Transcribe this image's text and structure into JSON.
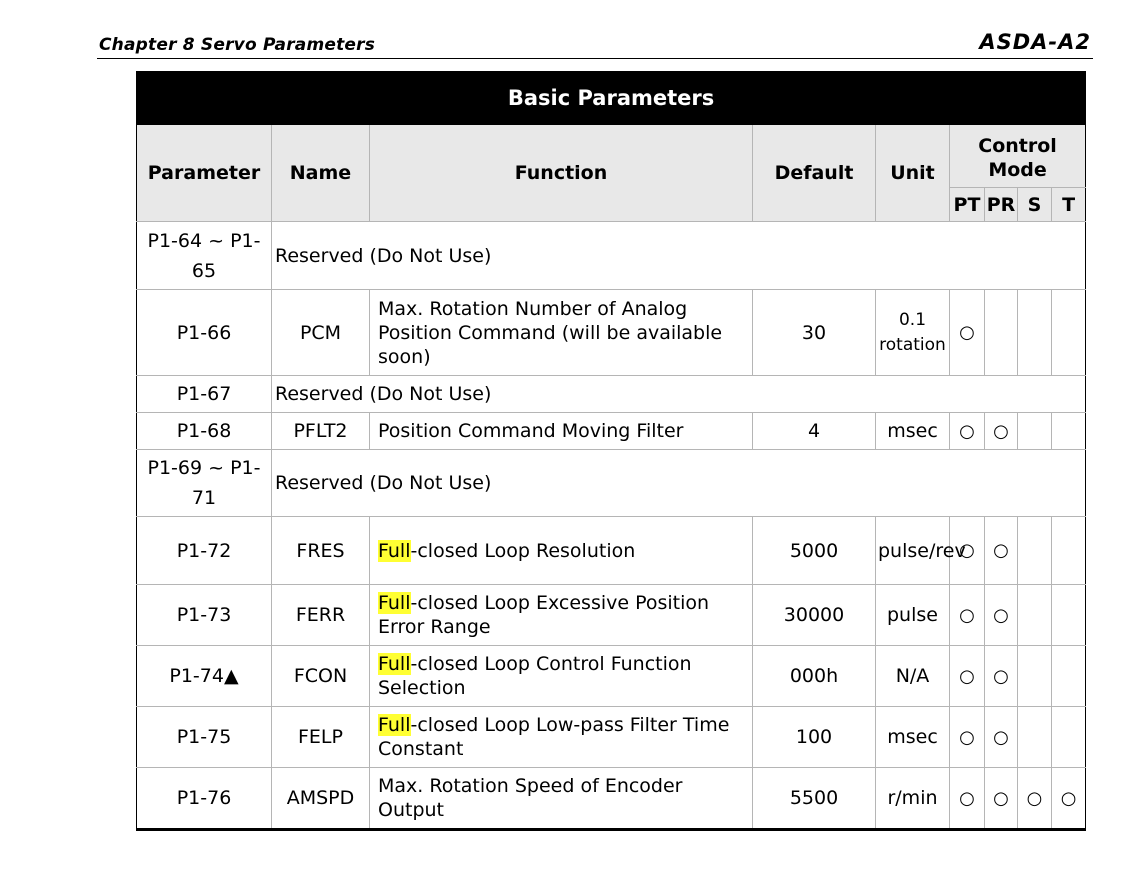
{
  "header": {
    "chapter": "Chapter 8  Servo Parameters",
    "logo": "ASDA-A2"
  },
  "table": {
    "title": "Basic Parameters",
    "columns": {
      "parameter": "Parameter",
      "name": "Name",
      "function": "Function",
      "default": "Default",
      "unit": "Unit",
      "control_mode": "Control Mode",
      "pt": "PT",
      "pr": "PR",
      "s": "S",
      "t": "T"
    },
    "mark_symbol": "○",
    "highlight_word": "Full",
    "rows": [
      {
        "param": "P1-64 ~ P1-65",
        "reserved": "Reserved (Do Not Use)"
      },
      {
        "param": "P1-66",
        "name": "PCM",
        "function": "Max. Rotation Number of Analog Position Command (will be available soon)",
        "default": "30",
        "unit": "0.1 rotation",
        "pt": "○",
        "pr": "",
        "s": "",
        "t": ""
      },
      {
        "param": "P1-67",
        "reserved": "Reserved (Do Not Use)"
      },
      {
        "param": "P1-68",
        "name": "PFLT2",
        "function": "Position Command Moving Filter",
        "default": "4",
        "unit": "msec",
        "pt": "○",
        "pr": "○",
        "s": "",
        "t": ""
      },
      {
        "param": "P1-69 ~ P1-71",
        "reserved": "Reserved (Do Not Use)"
      },
      {
        "param": "P1-72",
        "name": "FRES",
        "function_rest": "-closed Loop Resolution",
        "default": "5000",
        "unit": "pulse/rev",
        "pt": "○",
        "pr": "○",
        "s": "",
        "t": ""
      },
      {
        "param": "P1-73",
        "name": "FERR",
        "function_rest": "-closed Loop Excessive Position Error Range",
        "default": "30000",
        "unit": "pulse",
        "pt": "○",
        "pr": "○",
        "s": "",
        "t": ""
      },
      {
        "param": "P1-74▲",
        "name": "FCON",
        "function_rest": "-closed Loop Control Function Selection",
        "default": "000h",
        "unit": "N/A",
        "pt": "○",
        "pr": "○",
        "s": "",
        "t": ""
      },
      {
        "param": "P1-75",
        "name": "FELP",
        "function_rest": "-closed Loop Low-pass Filter Time Constant",
        "default": "100",
        "unit": "msec",
        "pt": "○",
        "pr": "○",
        "s": "",
        "t": ""
      },
      {
        "param": "P1-76",
        "name": "AMSPD",
        "function": "Max. Rotation Speed of Encoder Output",
        "default": "5500",
        "unit": "r/min",
        "pt": "○",
        "pr": "○",
        "s": "○",
        "t": "○"
      }
    ]
  }
}
